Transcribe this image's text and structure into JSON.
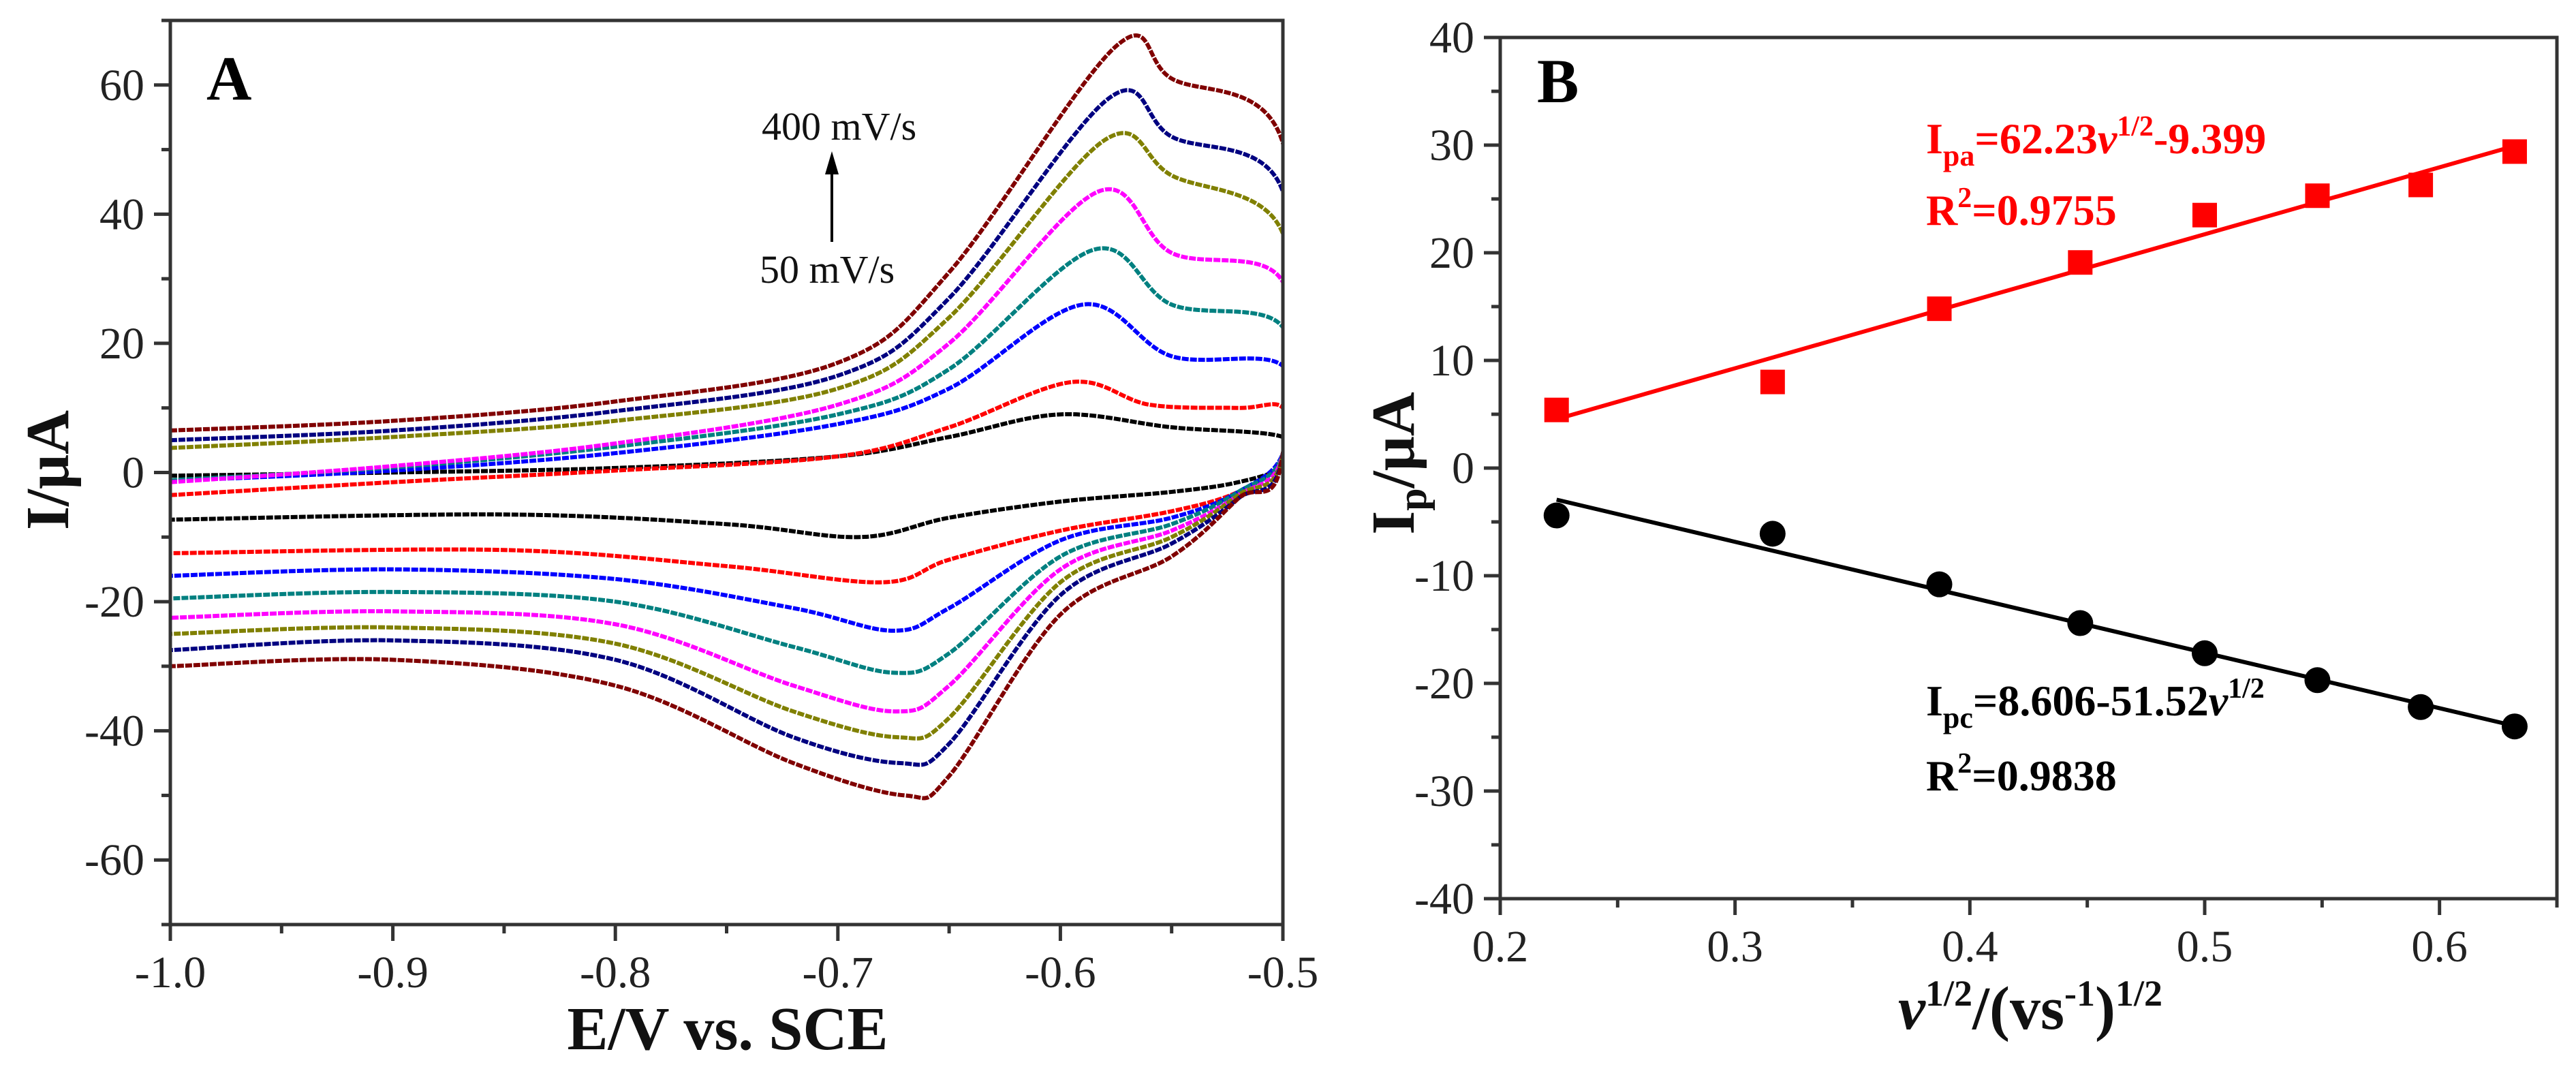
{
  "chart_data": [
    {
      "type": "line",
      "panel_label": "A",
      "xlabel": "E/V vs. SCE",
      "ylabel": "I/μA",
      "xlim": [
        -1.0,
        -0.5
      ],
      "ylim": [
        -70,
        70
      ],
      "xticks": [
        "-1.0",
        "-0.9",
        "-0.8",
        "-0.7",
        "-0.6",
        "-0.5"
      ],
      "yticks": [
        "-60",
        "-40",
        "-20",
        "0",
        "20",
        "40",
        "60"
      ],
      "grid": false,
      "annotations": {
        "top": "400 mV/s",
        "bottom": "50 mV/s",
        "arrow": "up"
      },
      "series": [
        {
          "color": "#000000",
          "forward": [
            [
              -1,
              -0.5
            ],
            [
              -0.9,
              0
            ],
            [
              -0.8,
              0.7
            ],
            [
              -0.7,
              2.5
            ],
            [
              -0.65,
              5.5
            ],
            [
              -0.6,
              9
            ],
            [
              -0.55,
              7
            ],
            [
              -0.5,
              5.5
            ]
          ],
          "reverse": [
            [
              -0.5,
              1
            ],
            [
              -0.52,
              -1.5
            ],
            [
              -0.55,
              -3
            ],
            [
              -0.6,
              -4.5
            ],
            [
              -0.65,
              -7
            ],
            [
              -0.69,
              -10
            ],
            [
              -0.75,
              -8
            ],
            [
              -0.85,
              -6.5
            ],
            [
              -1,
              -7.3
            ]
          ]
        },
        {
          "color": "#ff0000",
          "forward": [
            [
              -1,
              -3.5
            ],
            [
              -0.9,
              -1.5
            ],
            [
              -0.8,
              0.3
            ],
            [
              -0.7,
              2.5
            ],
            [
              -0.65,
              7
            ],
            [
              -0.595,
              14
            ],
            [
              -0.56,
              10.5
            ],
            [
              -0.52,
              10
            ],
            [
              -0.5,
              10
            ]
          ],
          "reverse": [
            [
              -0.5,
              2
            ],
            [
              -0.52,
              -3
            ],
            [
              -0.55,
              -6
            ],
            [
              -0.6,
              -9
            ],
            [
              -0.65,
              -13.5
            ],
            [
              -0.68,
              -17
            ],
            [
              -0.75,
              -14.5
            ],
            [
              -0.85,
              -12
            ],
            [
              -1,
              -12.5
            ]
          ]
        },
        {
          "color": "#0000ff",
          "forward": [
            [
              -1,
              -1.3
            ],
            [
              -0.9,
              0.3
            ],
            [
              -0.8,
              3
            ],
            [
              -0.7,
              7.5
            ],
            [
              -0.65,
              13
            ],
            [
              -0.59,
              26
            ],
            [
              -0.55,
              18
            ],
            [
              -0.5,
              16.5
            ]
          ],
          "reverse": [
            [
              -0.5,
              3
            ],
            [
              -0.52,
              -3
            ],
            [
              -0.55,
              -7
            ],
            [
              -0.6,
              -10.5
            ],
            [
              -0.65,
              -21
            ],
            [
              -0.675,
              -24.5
            ],
            [
              -0.72,
              -21
            ],
            [
              -0.8,
              -16.5
            ],
            [
              -0.9,
              -15
            ],
            [
              -1,
              -16
            ]
          ]
        },
        {
          "color": "#008080",
          "forward": [
            [
              -1,
              -1.2
            ],
            [
              -0.9,
              0.8
            ],
            [
              -0.8,
              4
            ],
            [
              -0.7,
              9
            ],
            [
              -0.65,
              16
            ],
            [
              -0.585,
              34.5
            ],
            [
              -0.55,
              26
            ],
            [
              -0.5,
              22.5
            ]
          ],
          "reverse": [
            [
              -0.5,
              3
            ],
            [
              -0.52,
              -3
            ],
            [
              -0.55,
              -8
            ],
            [
              -0.6,
              -13
            ],
            [
              -0.65,
              -28
            ],
            [
              -0.675,
              -31
            ],
            [
              -0.72,
              -27
            ],
            [
              -0.8,
              -20
            ],
            [
              -0.9,
              -18.5
            ],
            [
              -1,
              -19.5
            ]
          ]
        },
        {
          "color": "#ff00ff",
          "forward": [
            [
              -1,
              -1.5
            ],
            [
              -0.9,
              1
            ],
            [
              -0.8,
              4.5
            ],
            [
              -0.7,
              10.5
            ],
            [
              -0.65,
              20
            ],
            [
              -0.583,
              43.5
            ],
            [
              -0.55,
              34
            ],
            [
              -0.5,
              29.5
            ]
          ],
          "reverse": [
            [
              -0.5,
              3
            ],
            [
              -0.52,
              -3.5
            ],
            [
              -0.55,
              -9
            ],
            [
              -0.6,
              -15
            ],
            [
              -0.65,
              -33
            ],
            [
              -0.674,
              -37
            ],
            [
              -0.72,
              -33
            ],
            [
              -0.8,
              -23.5
            ],
            [
              -0.9,
              -21.5
            ],
            [
              -1,
              -22.5
            ]
          ]
        },
        {
          "color": "#808000",
          "forward": [
            [
              -1,
              3.8
            ],
            [
              -0.9,
              5.5
            ],
            [
              -0.8,
              8
            ],
            [
              -0.7,
              13
            ],
            [
              -0.65,
              24
            ],
            [
              -0.58,
              51.5
            ],
            [
              -0.55,
              46
            ],
            [
              -0.5,
              37
            ]
          ],
          "reverse": [
            [
              -0.5,
              3
            ],
            [
              -0.52,
              -3.5
            ],
            [
              -0.55,
              -10
            ],
            [
              -0.6,
              -17
            ],
            [
              -0.65,
              -38
            ],
            [
              -0.673,
              -41
            ],
            [
              -0.72,
              -37
            ],
            [
              -0.8,
              -26.5
            ],
            [
              -0.9,
              -24
            ],
            [
              -1,
              -25
            ]
          ]
        },
        {
          "color": "#000080",
          "forward": [
            [
              -1,
              5
            ],
            [
              -0.9,
              6.5
            ],
            [
              -0.8,
              9.5
            ],
            [
              -0.7,
              15
            ],
            [
              -0.65,
              27
            ],
            [
              -0.578,
              58
            ],
            [
              -0.55,
              52
            ],
            [
              -0.5,
              43.5
            ]
          ],
          "reverse": [
            [
              -0.5,
              3
            ],
            [
              -0.52,
              -4
            ],
            [
              -0.55,
              -11
            ],
            [
              -0.6,
              -19
            ],
            [
              -0.65,
              -42
            ],
            [
              -0.672,
              -45
            ],
            [
              -0.72,
              -41
            ],
            [
              -0.8,
              -29
            ],
            [
              -0.9,
              -26
            ],
            [
              -1,
              -27.5
            ]
          ]
        },
        {
          "color": "#800000",
          "forward": [
            [
              -1,
              6.5
            ],
            [
              -0.9,
              8
            ],
            [
              -0.8,
              11
            ],
            [
              -0.7,
              17
            ],
            [
              -0.65,
              31
            ],
            [
              -0.575,
              66
            ],
            [
              -0.55,
              61
            ],
            [
              -0.5,
              51
            ]
          ],
          "reverse": [
            [
              -0.5,
              3
            ],
            [
              -0.52,
              -4
            ],
            [
              -0.55,
              -13
            ],
            [
              -0.6,
              -22
            ],
            [
              -0.65,
              -47
            ],
            [
              -0.67,
              -50
            ],
            [
              -0.72,
              -45
            ],
            [
              -0.8,
              -33
            ],
            [
              -0.9,
              -29
            ],
            [
              -1,
              -30
            ]
          ]
        }
      ]
    },
    {
      "type": "scatter",
      "panel_label": "B",
      "xlabel": "v1/2/(vs-1)1/2",
      "ylabel": "Ip/μA",
      "xlim": [
        0.2,
        0.65
      ],
      "ylim": [
        -40,
        40
      ],
      "xticks": [
        "0.2",
        "0.3",
        "0.4",
        "0.5",
        "0.6"
      ],
      "yticks": [
        "-40",
        "-30",
        "-20",
        "-10",
        "0",
        "10",
        "20",
        "30",
        "40"
      ],
      "grid": false,
      "x": [
        0.224,
        0.316,
        0.387,
        0.447,
        0.5,
        0.548,
        0.592,
        0.632
      ],
      "series": [
        {
          "marker": "square",
          "color": "#ff0000",
          "values": [
            5.4,
            8.0,
            14.8,
            19.1,
            23.5,
            25.3,
            26.3,
            29.4
          ],
          "fit": {
            "slope": 62.23,
            "intercept": -9.399
          },
          "equation": {
            "lhs": "I",
            "lhs_sub": "pa",
            "text": "=62.23",
            "var": "v",
            "var_sup": "1/2",
            "tail": "-9.399"
          },
          "r2": {
            "r": "R",
            "sup": "2",
            "value": "=0.9755"
          }
        },
        {
          "marker": "circle",
          "color": "#000000",
          "values": [
            -4.4,
            -6.1,
            -10.8,
            -14.4,
            -17.2,
            -19.7,
            -22.2,
            -24.0
          ],
          "fit": {
            "slope": -51.52,
            "intercept": 8.606
          },
          "equation": {
            "lhs": "I",
            "lhs_sub": "pc",
            "text": "=8.606-51.52",
            "var": "v",
            "var_sup": "1/2",
            "tail": ""
          },
          "r2": {
            "r": "R",
            "sup": "2",
            "value": "=0.9838"
          }
        }
      ]
    }
  ]
}
